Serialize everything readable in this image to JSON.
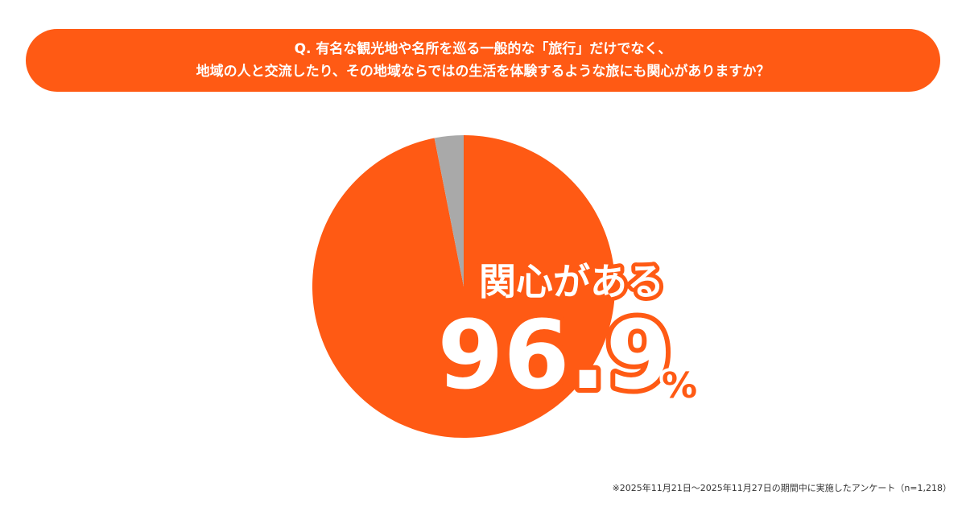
{
  "question": {
    "line1": "Q. 有名な観光地や名所を巡る一般的な「旅行」だけでなく、",
    "line2": "地域の人と交流したり、その地域ならではの生活を体験するような旅にも関心がありますか？"
  },
  "chart_data": {
    "type": "pie",
    "slices": [
      {
        "label": "関心がある",
        "value": 96.9,
        "color": "#ff5a14"
      },
      {
        "value": 3.1,
        "color": "#a9a9a9"
      }
    ],
    "highlight": {
      "label": "関心がある",
      "number": "96.9",
      "unit": "%"
    }
  },
  "footnote": "※2025年11月21日～2025年11月27日の期間中に実施したアンケート（n=1,218）"
}
